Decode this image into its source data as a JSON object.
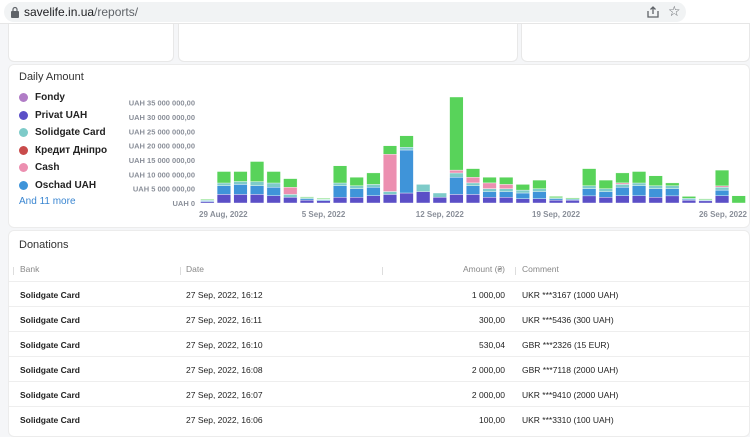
{
  "browser": {
    "host": "savelife.in.ua",
    "path": "/reports/"
  },
  "chart_card": {
    "title": "Daily Amount",
    "legend": [
      {
        "label": "Fondy",
        "color": "#b07cc6"
      },
      {
        "label": "Privat UAH",
        "color": "#5b4fc7"
      },
      {
        "label": "Solidgate Card",
        "color": "#7ecbc9"
      },
      {
        "label": "Кредит Дніпро",
        "color": "#c94b4b"
      },
      {
        "label": "Cash",
        "color": "#ec8fb0"
      },
      {
        "label": "Oschad UAH",
        "color": "#3f94d9"
      }
    ],
    "more_link": "And 11 more"
  },
  "chart_data": {
    "type": "bar",
    "stacked": true,
    "ylim": [
      0,
      37000000
    ],
    "y_ticks": [
      {
        "value": 0,
        "label": "UAH 0"
      },
      {
        "value": 5000000,
        "label": "UAH 5 000 000,00"
      },
      {
        "value": 10000000,
        "label": "UAH 10 000 000,00"
      },
      {
        "value": 15000000,
        "label": "UAH 15 000 000,00"
      },
      {
        "value": 20000000,
        "label": "UAH 20 000 000,00"
      },
      {
        "value": 25000000,
        "label": "UAH 25 000 000,00"
      },
      {
        "value": 30000000,
        "label": "UAH 30 000 000,00"
      },
      {
        "value": 35000000,
        "label": "UAH 35 000 000,00"
      }
    ],
    "x_ticks": [
      {
        "index": 0,
        "label": "29 Aug, 2022"
      },
      {
        "index": 7,
        "label": "5 Sep, 2022"
      },
      {
        "index": 14,
        "label": "12 Sep, 2022"
      },
      {
        "index": 21,
        "label": "19 Sep, 2022"
      },
      {
        "index": 28,
        "label": "26 Sep, 2022"
      }
    ],
    "colors": {
      "privat": "#5b4fc7",
      "oschad": "#3f94d9",
      "solidgate": "#7ecbc9",
      "cash": "#ec8fb0",
      "other": "#58d35a"
    },
    "days": [
      {
        "privat": 500000,
        "oschad": 400000,
        "solidgate": 200000,
        "cash": 0,
        "other": 200000
      },
      {
        "privat": 3000000,
        "oschad": 3000000,
        "solidgate": 1000000,
        "cash": 0,
        "other": 4000000
      },
      {
        "privat": 3000000,
        "oschad": 3500000,
        "solidgate": 1000000,
        "cash": 0,
        "other": 3500000
      },
      {
        "privat": 3000000,
        "oschad": 3000000,
        "solidgate": 1500000,
        "cash": 0,
        "other": 7000000
      },
      {
        "privat": 2500000,
        "oschad": 3000000,
        "solidgate": 1500000,
        "cash": 0,
        "other": 4000000
      },
      {
        "privat": 2000000,
        "oschad": 0,
        "solidgate": 1000000,
        "cash": 2500000,
        "other": 3000000
      },
      {
        "privat": 1000000,
        "oschad": 500000,
        "solidgate": 400000,
        "cash": 0,
        "other": 300000
      },
      {
        "privat": 800000,
        "oschad": 300000,
        "solidgate": 300000,
        "cash": 0,
        "other": 200000
      },
      {
        "privat": 2000000,
        "oschad": 4000000,
        "solidgate": 1000000,
        "cash": 0,
        "other": 6000000
      },
      {
        "privat": 2000000,
        "oschad": 3000000,
        "solidgate": 1000000,
        "cash": 0,
        "other": 3000000
      },
      {
        "privat": 2500000,
        "oschad": 3000000,
        "solidgate": 1000000,
        "cash": 0,
        "other": 4000000
      },
      {
        "privat": 3000000,
        "oschad": 0,
        "solidgate": 1000000,
        "cash": 13000000,
        "other": 3000000
      },
      {
        "privat": 3500000,
        "oschad": 15000000,
        "solidgate": 1000000,
        "cash": 0,
        "other": 4000000
      },
      {
        "privat": 4000000,
        "oschad": 0,
        "solidgate": 2500000,
        "cash": 0,
        "other": 0
      },
      {
        "privat": 2000000,
        "oschad": 0,
        "solidgate": 1500000,
        "cash": 0,
        "other": 0
      },
      {
        "privat": 3000000,
        "oschad": 6000000,
        "solidgate": 1500000,
        "cash": 1000000,
        "other": 25500000
      },
      {
        "privat": 3000000,
        "oschad": 3000000,
        "solidgate": 1000000,
        "cash": 2000000,
        "other": 3000000
      },
      {
        "privat": 2000000,
        "oschad": 2000000,
        "solidgate": 1000000,
        "cash": 2000000,
        "other": 2000000
      },
      {
        "privat": 2000000,
        "oschad": 2000000,
        "solidgate": 1000000,
        "cash": 1500000,
        "other": 2500000
      },
      {
        "privat": 1500000,
        "oschad": 2000000,
        "solidgate": 1000000,
        "cash": 0,
        "other": 2000000
      },
      {
        "privat": 1500000,
        "oschad": 2500000,
        "solidgate": 1000000,
        "cash": 0,
        "other": 3000000
      },
      {
        "privat": 1000000,
        "oschad": 500000,
        "solidgate": 300000,
        "cash": 0,
        "other": 500000
      },
      {
        "privat": 1000000,
        "oschad": 300000,
        "solidgate": 200000,
        "cash": 0,
        "other": 300000
      },
      {
        "privat": 2500000,
        "oschad": 2500000,
        "solidgate": 1000000,
        "cash": 0,
        "other": 6000000
      },
      {
        "privat": 2000000,
        "oschad": 2000000,
        "solidgate": 1000000,
        "cash": 0,
        "other": 3000000
      },
      {
        "privat": 2500000,
        "oschad": 3000000,
        "solidgate": 1000000,
        "cash": 500000,
        "other": 3500000
      },
      {
        "privat": 2500000,
        "oschad": 3500000,
        "solidgate": 1000000,
        "cash": 0,
        "other": 4000000
      },
      {
        "privat": 2000000,
        "oschad": 3000000,
        "solidgate": 1000000,
        "cash": 0,
        "other": 3500000
      },
      {
        "privat": 2500000,
        "oschad": 2500000,
        "solidgate": 1000000,
        "cash": 0,
        "other": 1000000
      },
      {
        "privat": 1000000,
        "oschad": 300000,
        "solidgate": 300000,
        "cash": 0,
        "other": 700000
      },
      {
        "privat": 800000,
        "oschad": 200000,
        "solidgate": 200000,
        "cash": 0,
        "other": 300000
      },
      {
        "privat": 2500000,
        "oschad": 2000000,
        "solidgate": 1000000,
        "cash": 500000,
        "other": 5500000
      },
      {
        "privat": 0,
        "oschad": 0,
        "solidgate": 0,
        "cash": 0,
        "other": 2500000
      }
    ]
  },
  "donations": {
    "title": "Donations",
    "headers": {
      "bank": "Bank",
      "date": "Date",
      "amount": "Amount (₴)",
      "comment": "Comment"
    },
    "rows": [
      {
        "bank": "Solidgate Card",
        "date": "27 Sep, 2022, 16:12",
        "amount": "1 000,00",
        "comment": "UKR ***3167 (1000 UAH)"
      },
      {
        "bank": "Solidgate Card",
        "date": "27 Sep, 2022, 16:11",
        "amount": "300,00",
        "comment": "UKR ***5436 (300 UAH)"
      },
      {
        "bank": "Solidgate Card",
        "date": "27 Sep, 2022, 16:10",
        "amount": "530,04",
        "comment": "GBR ***2326 (15 EUR)"
      },
      {
        "bank": "Solidgate Card",
        "date": "27 Sep, 2022, 16:08",
        "amount": "2 000,00",
        "comment": "GBR ***7118 (2000 UAH)"
      },
      {
        "bank": "Solidgate Card",
        "date": "27 Sep, 2022, 16:07",
        "amount": "2 000,00",
        "comment": "UKR ***9410 (2000 UAH)"
      },
      {
        "bank": "Solidgate Card",
        "date": "27 Sep, 2022, 16:06",
        "amount": "100,00",
        "comment": "UKR ***3310 (100 UAH)"
      }
    ]
  }
}
